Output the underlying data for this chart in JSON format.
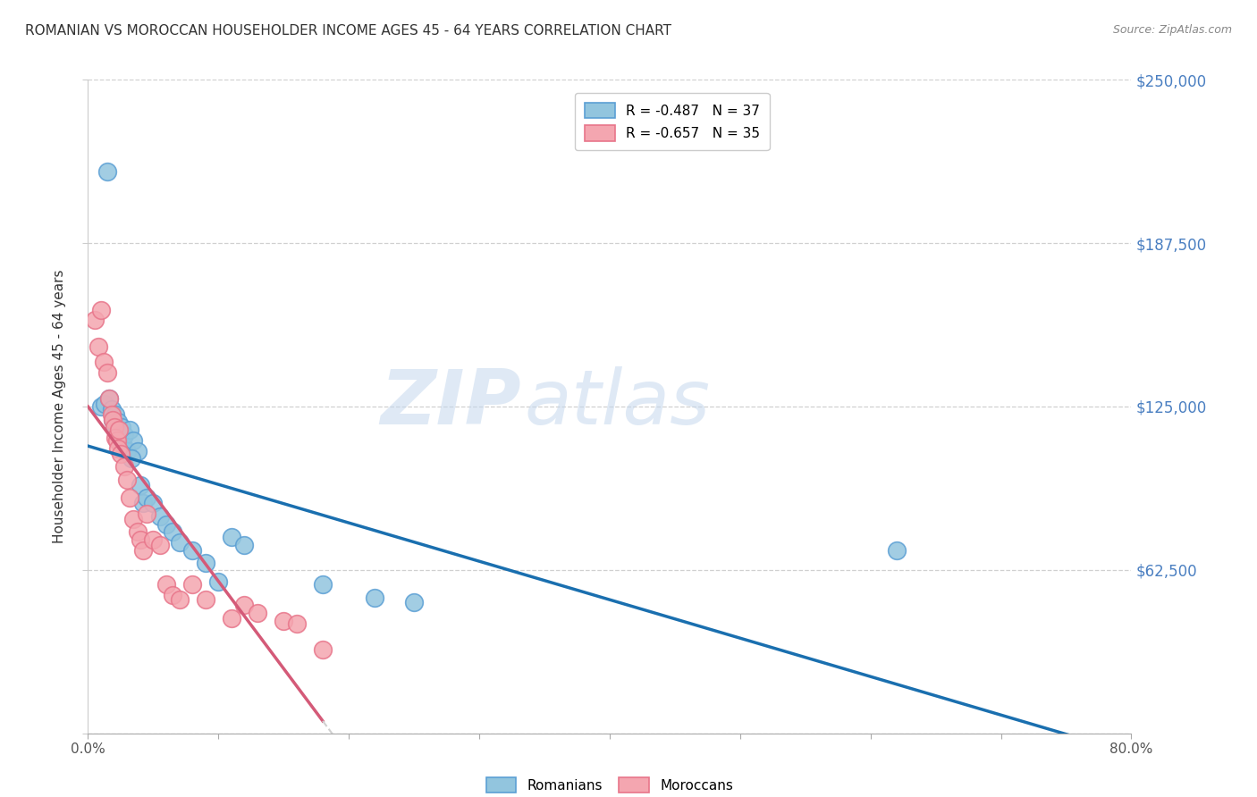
{
  "title": "ROMANIAN VS MOROCCAN HOUSEHOLDER INCOME AGES 45 - 64 YEARS CORRELATION CHART",
  "source": "Source: ZipAtlas.com",
  "ylabel": "Householder Income Ages 45 - 64 years",
  "xlim": [
    0.0,
    0.8
  ],
  "ylim": [
    0,
    250000
  ],
  "yticks": [
    0,
    62500,
    125000,
    187500,
    250000
  ],
  "ytick_labels_right": [
    "",
    "$62,500",
    "$125,000",
    "$187,500",
    "$250,000"
  ],
  "xticks": [
    0.0,
    0.1,
    0.2,
    0.3,
    0.4,
    0.5,
    0.6,
    0.7,
    0.8
  ],
  "xtick_labels": [
    "0.0%",
    "",
    "",
    "",
    "",
    "",
    "",
    "",
    "80.0%"
  ],
  "romanian_color": "#92c5de",
  "moroccan_color": "#f4a6b0",
  "romanian_edge": "#5b9fd4",
  "moroccan_edge": "#e8758a",
  "trendline_romanian_color": "#1a6faf",
  "trendline_moroccan_color": "#d45a78",
  "trendline_moroccan_dashed_color": "#d0d0d0",
  "legend_romanian_label": "R = -0.487   N = 37",
  "legend_moroccan_label": "R = -0.657   N = 35",
  "watermark_zip": "ZIP",
  "watermark_atlas": "atlas",
  "watermark_color": "#c5d8ee",
  "romanians_label": "Romanians",
  "moroccans_label": "Moroccans",
  "romanian_x": [
    0.01,
    0.013,
    0.016,
    0.018,
    0.019,
    0.02,
    0.021,
    0.022,
    0.023,
    0.024,
    0.025,
    0.026,
    0.027,
    0.028,
    0.03,
    0.032,
    0.035,
    0.038,
    0.04,
    0.042,
    0.045,
    0.05,
    0.055,
    0.06,
    0.065,
    0.07,
    0.08,
    0.09,
    0.1,
    0.11,
    0.12,
    0.18,
    0.22,
    0.25,
    0.62,
    0.015,
    0.033
  ],
  "romanian_y": [
    125000,
    126000,
    128000,
    124000,
    120000,
    118000,
    122000,
    116000,
    119000,
    115000,
    112000,
    117000,
    110000,
    114000,
    108000,
    116000,
    112000,
    108000,
    95000,
    88000,
    90000,
    88000,
    83000,
    80000,
    77000,
    73000,
    70000,
    65000,
    58000,
    75000,
    72000,
    57000,
    52000,
    50000,
    70000,
    215000,
    105000
  ],
  "moroccan_x": [
    0.005,
    0.008,
    0.01,
    0.012,
    0.015,
    0.016,
    0.018,
    0.019,
    0.02,
    0.021,
    0.022,
    0.023,
    0.024,
    0.025,
    0.028,
    0.03,
    0.032,
    0.035,
    0.038,
    0.04,
    0.042,
    0.045,
    0.05,
    0.055,
    0.06,
    0.065,
    0.07,
    0.08,
    0.09,
    0.11,
    0.12,
    0.13,
    0.15,
    0.16,
    0.18
  ],
  "moroccan_y": [
    158000,
    148000,
    162000,
    142000,
    138000,
    128000,
    122000,
    120000,
    117000,
    113000,
    112000,
    109000,
    116000,
    107000,
    102000,
    97000,
    90000,
    82000,
    77000,
    74000,
    70000,
    84000,
    74000,
    72000,
    57000,
    53000,
    51000,
    57000,
    51000,
    44000,
    49000,
    46000,
    43000,
    42000,
    32000
  ]
}
